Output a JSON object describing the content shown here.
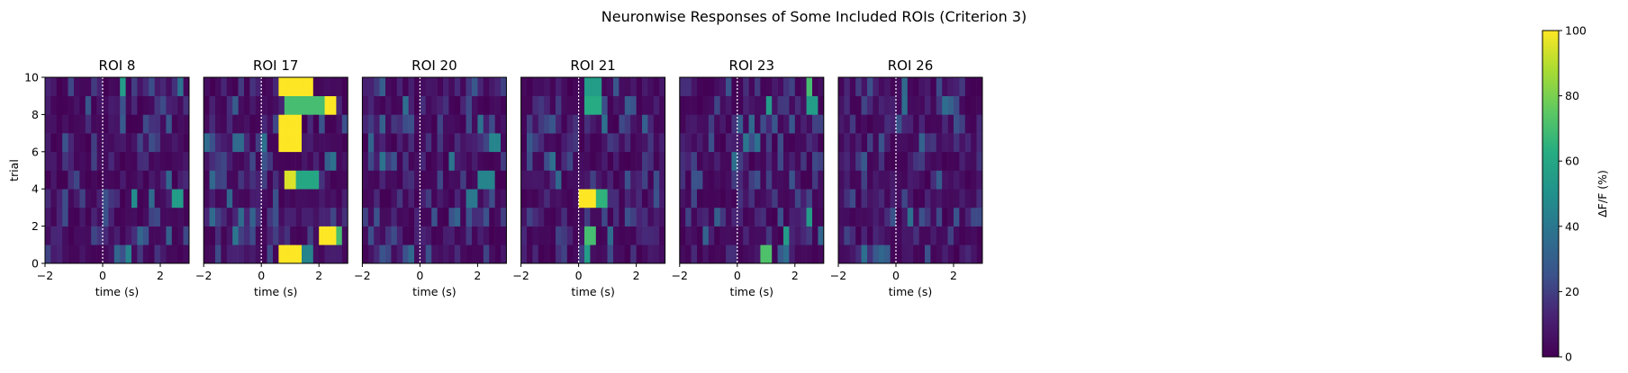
{
  "figure": {
    "suptitle": "Neuronwise Responses of Some Included ROIs (Criterion 3)"
  },
  "chart_data": {
    "type": "heatmap",
    "title": "Neuronwise Responses of Some Included ROIs (Criterion 3)",
    "xlabel": "time (s)",
    "ylabel": "trial",
    "xlim": [
      -2,
      3
    ],
    "ylim": [
      0,
      10
    ],
    "xticks": [
      "−2",
      "0",
      "2"
    ],
    "yticks": [
      "0",
      "2",
      "4",
      "6",
      "8",
      "10"
    ],
    "colorbar": {
      "label": "ΔF/F (%)",
      "range": [
        0,
        100
      ],
      "ticks": [
        "0",
        "20",
        "40",
        "60",
        "80",
        "100"
      ],
      "colormap": "viridis"
    },
    "stim_onset_s": 0,
    "panels": [
      {
        "title": "ROI 8",
        "features": [
          {
            "trial": 3,
            "t0": 1.0,
            "t1": 1.2,
            "v": 48
          },
          {
            "trial": 3,
            "t0": 2.5,
            "t1": 2.8,
            "v": 55
          },
          {
            "trial": 9,
            "t0": 0.6,
            "t1": 0.8,
            "v": 55
          },
          {
            "trial": 0,
            "t0": 0.8,
            "t1": 1.0,
            "v": 45
          }
        ]
      },
      {
        "title": "ROI 17",
        "features": [
          {
            "trial": 9,
            "t0": 0.7,
            "t1": 1.8,
            "v": 100
          },
          {
            "trial": 8,
            "t0": 0.8,
            "t1": 2.2,
            "v": 70
          },
          {
            "trial": 8,
            "t0": 2.2,
            "t1": 2.6,
            "v": 100
          },
          {
            "trial": 7,
            "t0": 0.7,
            "t1": 1.5,
            "v": 100
          },
          {
            "trial": 6,
            "t0": 0.7,
            "t1": 1.5,
            "v": 100
          },
          {
            "trial": 4,
            "t0": 0.8,
            "t1": 1.2,
            "v": 95
          },
          {
            "trial": 4,
            "t0": 1.2,
            "t1": 2.0,
            "v": 60
          },
          {
            "trial": 1,
            "t0": 2.0,
            "t1": 2.7,
            "v": 100
          },
          {
            "trial": 1,
            "t0": 2.7,
            "t1": 2.9,
            "v": 70
          },
          {
            "trial": 0,
            "t0": 0.7,
            "t1": 1.5,
            "v": 100
          },
          {
            "trial": 0,
            "t0": 1.5,
            "t1": 1.9,
            "v": 45
          }
        ]
      },
      {
        "title": "ROI 20",
        "features": [
          {
            "trial": 4,
            "t0": 2.0,
            "t1": 2.6,
            "v": 45
          },
          {
            "trial": 6,
            "t0": 2.4,
            "t1": 2.8,
            "v": 45
          },
          {
            "trial": 3,
            "t0": 1.6,
            "t1": 2.0,
            "v": 40
          }
        ]
      },
      {
        "title": "ROI 21",
        "features": [
          {
            "trial": 9,
            "t0": 0.3,
            "t1": 0.9,
            "v": 55
          },
          {
            "trial": 8,
            "t0": 0.2,
            "t1": 0.8,
            "v": 62
          },
          {
            "trial": 3,
            "t0": 0.1,
            "t1": 0.6,
            "v": 100
          },
          {
            "trial": 3,
            "t0": 0.6,
            "t1": 1.0,
            "v": 65
          },
          {
            "trial": 1,
            "t0": 0.2,
            "t1": 0.6,
            "v": 70
          },
          {
            "trial": 0,
            "t0": 0.2,
            "t1": 0.5,
            "v": 55
          }
        ]
      },
      {
        "title": "ROI 23",
        "features": [
          {
            "trial": 9,
            "t0": 2.4,
            "t1": 2.6,
            "v": 70
          },
          {
            "trial": 8,
            "t0": 1.0,
            "t1": 1.2,
            "v": 55
          },
          {
            "trial": 8,
            "t0": 2.5,
            "t1": 2.8,
            "v": 55
          },
          {
            "trial": 1,
            "t0": 1.6,
            "t1": 1.8,
            "v": 55
          },
          {
            "trial": 0,
            "t0": 0.9,
            "t1": 1.3,
            "v": 72
          },
          {
            "trial": 2,
            "t0": 2.4,
            "t1": 2.6,
            "v": 55
          }
        ]
      },
      {
        "title": "ROI 26",
        "features": [
          {
            "trial": 2,
            "t0": 0.4,
            "t1": 0.6,
            "v": 38
          }
        ]
      }
    ]
  }
}
